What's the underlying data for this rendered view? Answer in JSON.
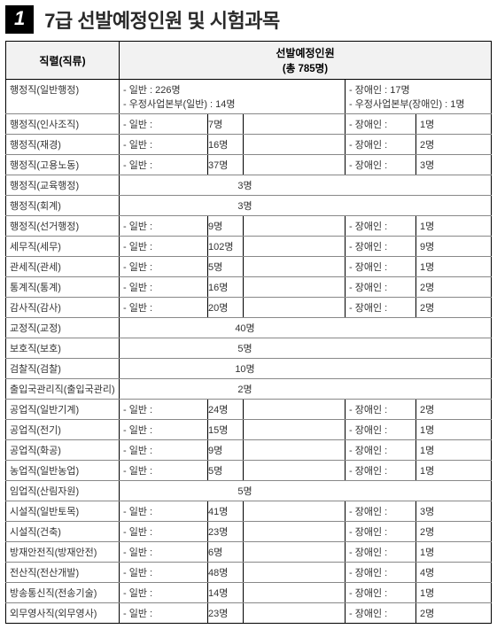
{
  "header": {
    "number": "1",
    "title": "7급 선발예정인원 및 시험과목"
  },
  "table": {
    "col_category": "직렬(직류)",
    "col_count_top": "선발예정인원",
    "col_count_sub": "(총 785명)",
    "rows": [
      {
        "category": "행정직(일반행정)",
        "special": true,
        "a1": "- 일반 : 226명",
        "a2": "- 우정사업본부(일반) : 14명",
        "b1": "- 장애인 : 17명",
        "b2": "- 우정사업본부(장애인) : 1명"
      },
      {
        "category": "행정직(인사조직)",
        "gen_label": "- 일반 :",
        "gen_val": "7명",
        "dis_label": "- 장애인 :",
        "dis_val": "1명"
      },
      {
        "category": "행정직(재경)",
        "gen_label": "- 일반 :",
        "gen_val": "16명",
        "dis_label": "- 장애인 :",
        "dis_val": "2명"
      },
      {
        "category": "행정직(고용노동)",
        "gen_label": "- 일반 :",
        "gen_val": "37명",
        "dis_label": "- 장애인 :",
        "dis_val": "3명"
      },
      {
        "category": "행정직(교육행정)",
        "center_val": "3명"
      },
      {
        "category": "행정직(회계)",
        "center_val": "3명"
      },
      {
        "category": "행정직(선거행정)",
        "gen_label": "- 일반 :",
        "gen_val": "9명",
        "dis_label": "- 장애인 :",
        "dis_val": "1명"
      },
      {
        "category": "세무직(세무)",
        "gen_label": "- 일반 :",
        "gen_val": "102명",
        "dis_label": "- 장애인 :",
        "dis_val": "9명"
      },
      {
        "category": "관세직(관세)",
        "gen_label": "- 일반 :",
        "gen_val": "5명",
        "dis_label": "- 장애인 :",
        "dis_val": "1명"
      },
      {
        "category": "통계직(통계)",
        "gen_label": "- 일반 :",
        "gen_val": "16명",
        "dis_label": "- 장애인 :",
        "dis_val": "2명"
      },
      {
        "category": "감사직(감사)",
        "gen_label": "- 일반 :",
        "gen_val": "20명",
        "dis_label": "- 장애인 :",
        "dis_val": "2명"
      },
      {
        "category": "교정직(교정)",
        "center_val": "40명"
      },
      {
        "category": "보호직(보호)",
        "center_val": "5명"
      },
      {
        "category": "검찰직(검찰)",
        "center_val": "10명"
      },
      {
        "category": "출입국관리직(출입국관리)",
        "center_val": "2명"
      },
      {
        "category": "공업직(일반기계)",
        "gen_label": "- 일반 :",
        "gen_val": "24명",
        "dis_label": "- 장애인 :",
        "dis_val": "2명"
      },
      {
        "category": "공업직(전기)",
        "gen_label": "- 일반 :",
        "gen_val": "15명",
        "dis_label": "- 장애인 :",
        "dis_val": "1명"
      },
      {
        "category": "공업직(화공)",
        "gen_label": "- 일반 :",
        "gen_val": "9명",
        "dis_label": "- 장애인 :",
        "dis_val": "1명"
      },
      {
        "category": "농업직(일반농업)",
        "gen_label": "- 일반 :",
        "gen_val": "5명",
        "dis_label": "- 장애인 :",
        "dis_val": "1명"
      },
      {
        "category": "임업직(산림자원)",
        "center_val": "5명"
      },
      {
        "category": "시설직(일반토목)",
        "gen_label": "- 일반 :",
        "gen_val": "41명",
        "dis_label": "- 장애인 :",
        "dis_val": "3명"
      },
      {
        "category": "시설직(건축)",
        "gen_label": "- 일반 :",
        "gen_val": "23명",
        "dis_label": "- 장애인 :",
        "dis_val": "2명"
      },
      {
        "category": "방재안전직(방재안전)",
        "gen_label": "- 일반 :",
        "gen_val": "6명",
        "dis_label": "- 장애인 :",
        "dis_val": "1명"
      },
      {
        "category": "전산직(전산개발)",
        "gen_label": "- 일반 :",
        "gen_val": "48명",
        "dis_label": "- 장애인 :",
        "dis_val": "4명"
      },
      {
        "category": "방송통신직(전송기술)",
        "gen_label": "- 일반 :",
        "gen_val": "14명",
        "dis_label": "- 장애인 :",
        "dis_val": "1명"
      },
      {
        "category": "외무영사직(외무영사)",
        "gen_label": "- 일반 :",
        "gen_val": "23명",
        "dis_label": "- 장애인 :",
        "dis_val": "2명"
      }
    ]
  }
}
